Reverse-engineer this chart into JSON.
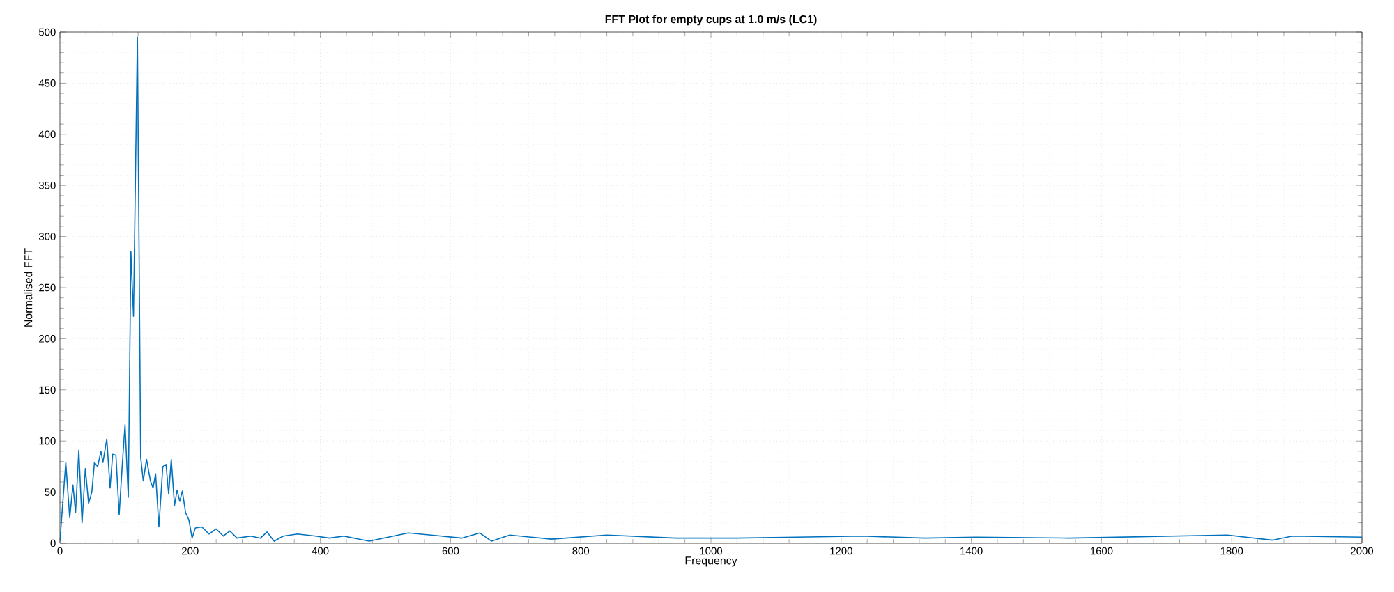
{
  "chart_data": {
    "type": "line",
    "title": "FFT Plot for empty cups at 1.0 m/s (LC1)",
    "xlabel": "Frequency",
    "ylabel": "Normalised FFT",
    "x": [
      0,
      9,
      15,
      20,
      24,
      29,
      34,
      39,
      44,
      49,
      53,
      58,
      63,
      66,
      72,
      77,
      81,
      86,
      91,
      96,
      100,
      105,
      109,
      113,
      119,
      124,
      128,
      133,
      139,
      143,
      147,
      152,
      158,
      163,
      167,
      171,
      176,
      180,
      184,
      188,
      193,
      198,
      203,
      208,
      218,
      229,
      240,
      251,
      261,
      272,
      293,
      308,
      318,
      329,
      343,
      365,
      393,
      414,
      436,
      475,
      535,
      570,
      617,
      645,
      663,
      691,
      755,
      840,
      946,
      1039,
      1132,
      1232,
      1328,
      1407,
      1550,
      1793,
      1863,
      1893,
      2000
    ],
    "series": [
      {
        "color": "#0072bd",
        "values": [
          2,
          79,
          25,
          57,
          30,
          91,
          20,
          73,
          39,
          50,
          79,
          75,
          90,
          79,
          102,
          54,
          87,
          86,
          28,
          79,
          116,
          45,
          285,
          222,
          495,
          84,
          61,
          82,
          61,
          54,
          68,
          16,
          75,
          77,
          48,
          82,
          37,
          52,
          41,
          51,
          30,
          23,
          5,
          15,
          16,
          9,
          14,
          7,
          12,
          5,
          7,
          5,
          11,
          2,
          7,
          9,
          7,
          5,
          7,
          2,
          10,
          8,
          5,
          10,
          2,
          8,
          4,
          8,
          5,
          5,
          6,
          7,
          5,
          6,
          5,
          8,
          3,
          7,
          6
        ]
      }
    ],
    "xlim": [
      0,
      2000
    ],
    "ylim": [
      0,
      500
    ],
    "xticks": [
      0,
      200,
      400,
      600,
      800,
      1000,
      1200,
      1400,
      1600,
      1800,
      2000
    ],
    "yticks": [
      0,
      50,
      100,
      150,
      200,
      250,
      300,
      350,
      400,
      450,
      500
    ],
    "grid": true,
    "marker": "none",
    "line_style": "solid"
  }
}
